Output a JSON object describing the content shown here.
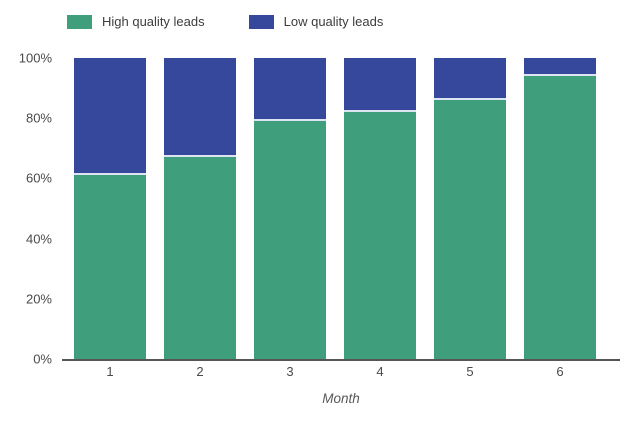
{
  "legend": {
    "items": [
      {
        "label": "High quality leads",
        "color": "#3f9f7c"
      },
      {
        "label": "Low quality leads",
        "color": "#36489c"
      }
    ]
  },
  "chart_data": {
    "type": "bar",
    "stacked": true,
    "stacking": "percent",
    "title": "",
    "xlabel": "Month",
    "ylabel": "",
    "categories": [
      "1",
      "2",
      "3",
      "4",
      "5",
      "6"
    ],
    "series": [
      {
        "name": "High quality leads",
        "color": "#3f9f7c",
        "values": [
          61,
          67,
          79,
          82,
          86,
          94
        ]
      },
      {
        "name": "Low quality leads",
        "color": "#36489c",
        "values": [
          39,
          33,
          21,
          18,
          14,
          6
        ]
      }
    ],
    "ylim": [
      0,
      100
    ],
    "yticks": [
      "0%",
      "20%",
      "40%",
      "60%",
      "80%",
      "100%"
    ],
    "legend_position": "top",
    "grid": false
  },
  "colors": {
    "axis_line": "#555555",
    "tick_text": "#4a4a4a",
    "segment_divider": "#dce4f2",
    "background": "#ffffff"
  }
}
